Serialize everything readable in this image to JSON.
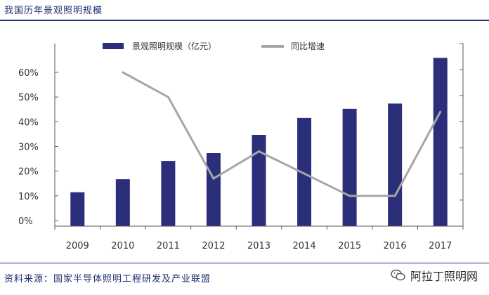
{
  "header": {
    "title": "我国历年景观照明规模"
  },
  "footer": {
    "source": "资料来源：国家半导体照明工程研发及产业联盟",
    "watermark": "阿拉丁照明网",
    "watermark_icon": "wechat-icon"
  },
  "chart_data": {
    "type": "bar+line",
    "title": "我国历年景观照明规模",
    "categories": [
      "2009",
      "2010",
      "2011",
      "2012",
      "2013",
      "2014",
      "2015",
      "2016",
      "2017"
    ],
    "series": [
      {
        "name": "景观照明规模（亿元）",
        "type": "bar",
        "axis": "right",
        "color": "#2b2f7a",
        "values": [
          130,
          180,
          250,
          280,
          350,
          415,
          450,
          470,
          645
        ]
      },
      {
        "name": "同比增速",
        "type": "line",
        "axis": "left",
        "color": "#a6a6a6",
        "values": [
          null,
          0.6,
          0.5,
          0.17,
          0.28,
          0.19,
          0.1,
          0.1,
          0.44
        ]
      }
    ],
    "left_axis": {
      "ticks": [
        "0%",
        "10%",
        "20%",
        "30%",
        "40%",
        "50%",
        "60%"
      ],
      "min": 0,
      "max": 0.6
    },
    "right_axis": {
      "min": 0,
      "max": 700,
      "tick_labels": false
    },
    "legend": {
      "position": "top-center"
    },
    "grid": false
  }
}
